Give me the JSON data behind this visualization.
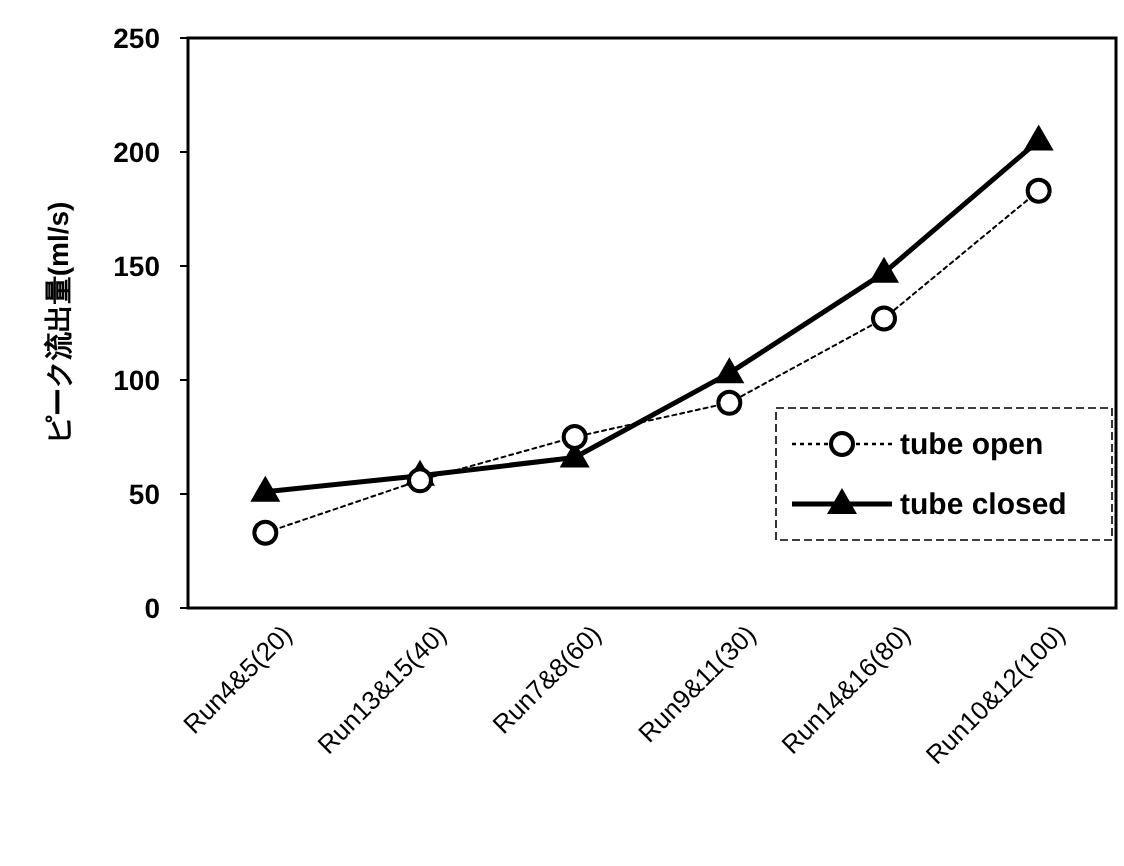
{
  "chart_data": {
    "type": "line",
    "ylabel": "ピーク流出量(ml/s)",
    "categories": [
      "Run4&5(20)",
      "Run13&15(40)",
      "Run7&8(60)",
      "Run9&11(30)",
      "Run14&16(80)",
      "Run10&12(100)"
    ],
    "series": [
      {
        "name": "tube open",
        "color": "#000000",
        "marker": "circle",
        "line_style": "dotted",
        "values": [
          33,
          56,
          75,
          90,
          127,
          183
        ]
      },
      {
        "name": "tube closed",
        "color": "#000000",
        "marker": "triangle",
        "line_style": "solid",
        "values": [
          51,
          58,
          66,
          103,
          147,
          205
        ]
      }
    ],
    "ylim": [
      0,
      250
    ],
    "yticks": [
      0,
      50,
      100,
      150,
      200,
      250
    ],
    "grid": false,
    "legend": "right"
  }
}
